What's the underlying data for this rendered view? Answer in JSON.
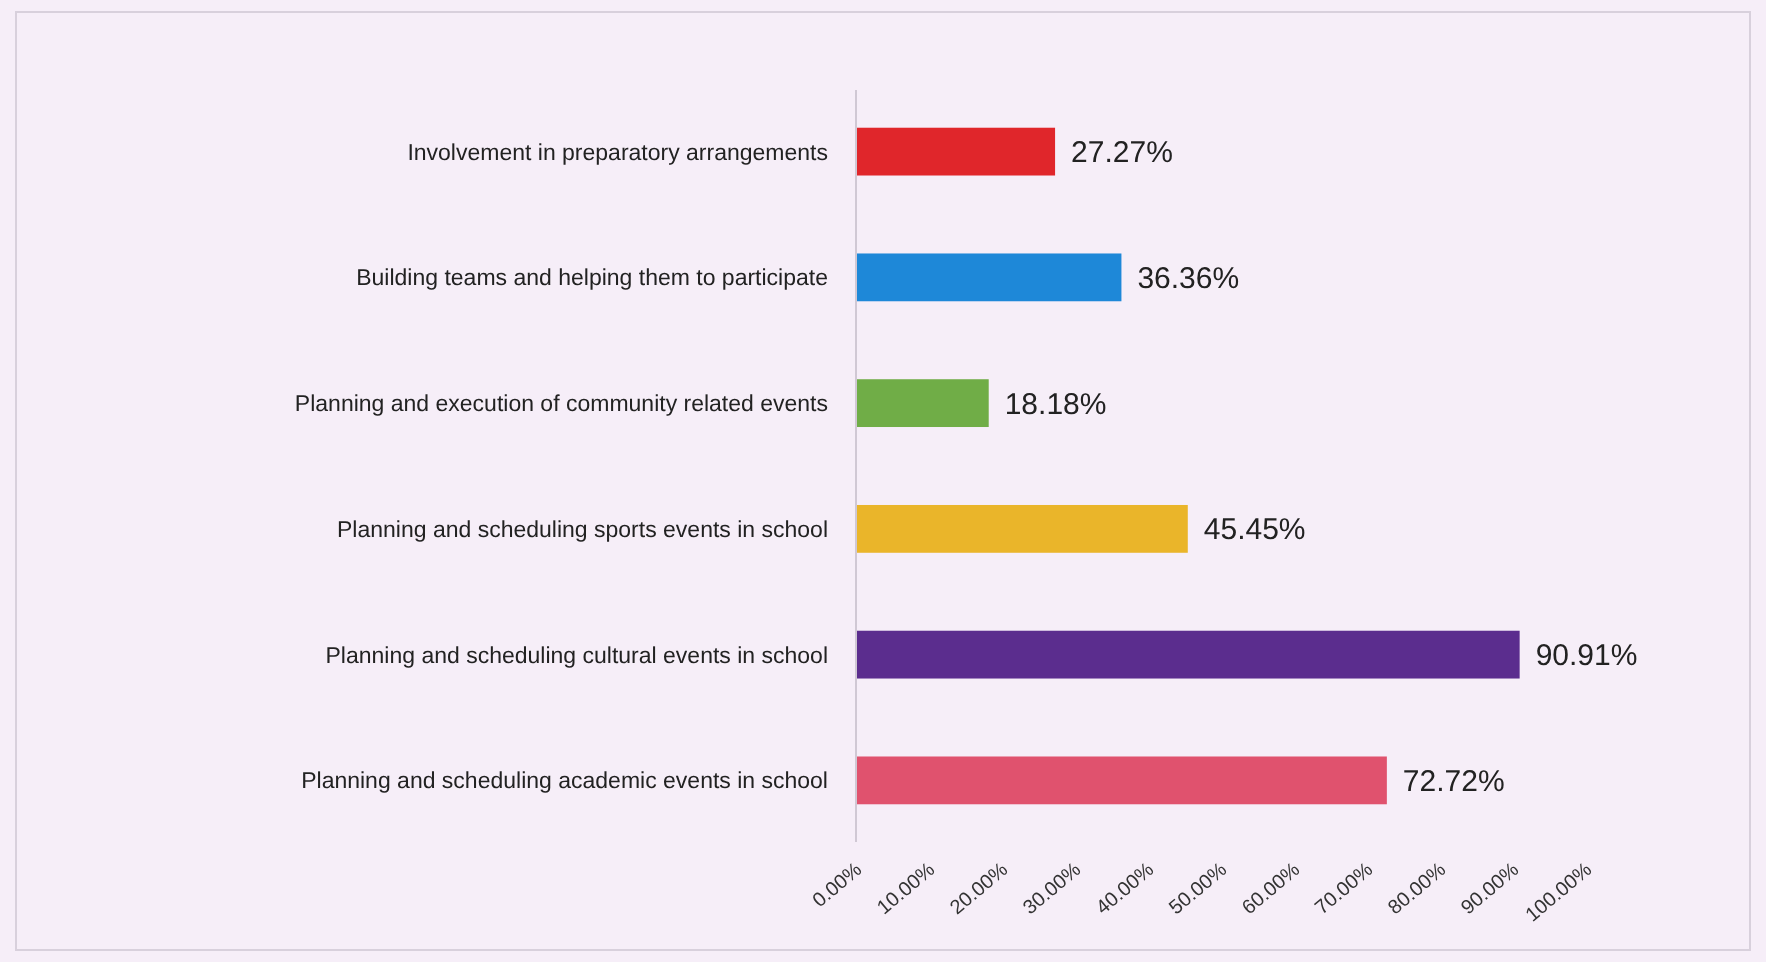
{
  "chart_data": {
    "type": "bar",
    "orientation": "horizontal",
    "categories": [
      "Involvement in preparatory arrangements",
      "Building teams and helping them to participate",
      "Planning and execution of community related events",
      "Planning and scheduling sports events in school",
      "Planning and scheduling cultural events in school",
      "Planning and scheduling academic events in school"
    ],
    "values": [
      27.27,
      36.36,
      18.18,
      45.45,
      90.91,
      72.72
    ],
    "colors": [
      "#e0262b",
      "#1e88d8",
      "#70ad47",
      "#eab52a",
      "#5b2d8e",
      "#e0526e"
    ],
    "value_labels": [
      "27.27%",
      "36.36%",
      "18.18%",
      "45.45%",
      "90.91%",
      "72.72%"
    ],
    "xlim": [
      0,
      100
    ],
    "xticks": [
      {
        "value": 0,
        "label": "0.00%"
      },
      {
        "value": 10,
        "label": "10.00%"
      },
      {
        "value": 20,
        "label": "20.00%"
      },
      {
        "value": 30,
        "label": "30.00%"
      },
      {
        "value": 40,
        "label": "40.00%"
      },
      {
        "value": 50,
        "label": "50.00%"
      },
      {
        "value": 60,
        "label": "60.00%"
      },
      {
        "value": 70,
        "label": "70.00%"
      },
      {
        "value": 80,
        "label": "80.00%"
      },
      {
        "value": 90,
        "label": "90.00%"
      },
      {
        "value": 100,
        "label": "100.00%"
      }
    ],
    "grid": false
  }
}
